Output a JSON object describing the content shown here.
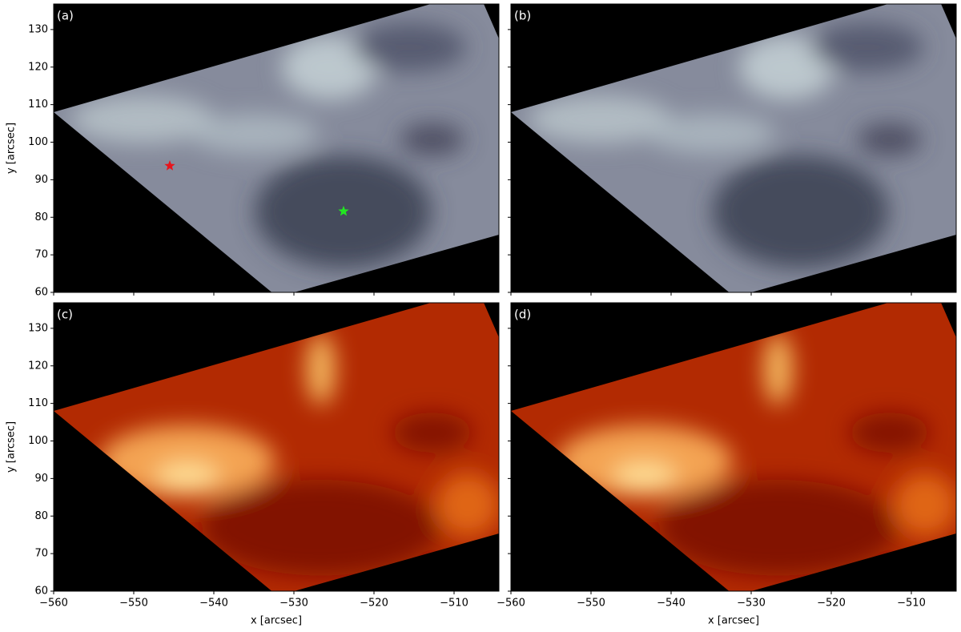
{
  "chart_data": [
    {
      "type": "image",
      "panel_label": "(a)",
      "cmap": "gray",
      "ylabel": "y [arcsec]",
      "xlim": [
        -560,
        -504.4
      ],
      "ylim": [
        60,
        136.8
      ],
      "xticks": [
        -560,
        -550,
        -540,
        -530,
        -520,
        -510
      ],
      "yticks": [
        60,
        70,
        80,
        90,
        100,
        110,
        120,
        130
      ],
      "points": [
        {
          "x": -545.5,
          "y": 93.7,
          "color": "#e8141c"
        },
        {
          "x": -523.8,
          "y": 81.6,
          "color": "#22e622"
        }
      ]
    },
    {
      "type": "image",
      "panel_label": "(b)",
      "cmap": "gray",
      "xlim": [
        -560,
        -504.4
      ],
      "ylim": [
        60,
        136.8
      ],
      "xticks": [
        -560,
        -550,
        -540,
        -530,
        -520,
        -510
      ],
      "yticks": [
        60,
        70,
        80,
        90,
        100,
        110,
        120,
        130
      ]
    },
    {
      "type": "image",
      "panel_label": "(c)",
      "cmap": "hot",
      "ylabel": "y [arcsec]",
      "xlabel": "x [arcsec]",
      "xlim": [
        -560,
        -504.4
      ],
      "ylim": [
        60,
        136.8
      ],
      "xticks": [
        {
          "value": -560,
          "label": "−560"
        },
        {
          "value": -550,
          "label": "−550"
        },
        {
          "value": -540,
          "label": "−540"
        },
        {
          "value": -530,
          "label": "−530"
        },
        {
          "value": -520,
          "label": "−520"
        },
        {
          "value": -510,
          "label": "−510"
        }
      ],
      "yticks": [
        60,
        70,
        80,
        90,
        100,
        110,
        120,
        130
      ]
    },
    {
      "type": "image",
      "panel_label": "(d)",
      "cmap": "hot",
      "xlabel": "x [arcsec]",
      "xlim": [
        -560,
        -504.4
      ],
      "ylim": [
        60,
        136.8
      ],
      "xticks": [
        {
          "value": -560,
          "label": "−560"
        },
        {
          "value": -550,
          "label": "−550"
        },
        {
          "value": -540,
          "label": "−540"
        },
        {
          "value": -530,
          "label": "−530"
        },
        {
          "value": -520,
          "label": "−520"
        },
        {
          "value": -510,
          "label": "−510"
        }
      ],
      "yticks": [
        60,
        70,
        80,
        90,
        100,
        110,
        120,
        130
      ]
    }
  ]
}
